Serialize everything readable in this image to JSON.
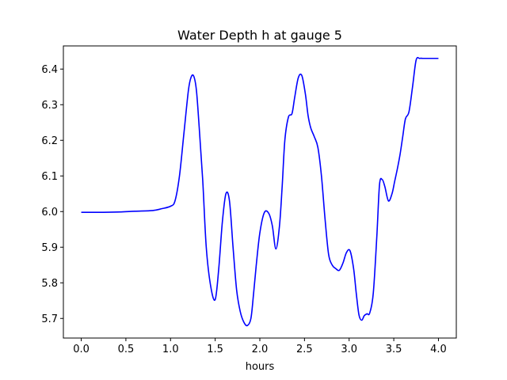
{
  "chart_data": {
    "type": "line",
    "title": "Water Depth h at gauge 5",
    "xlabel": "hours",
    "ylabel": "",
    "xlim": [
      -0.2,
      4.2
    ],
    "ylim": [
      5.645,
      6.465
    ],
    "xticks": [
      0.0,
      0.5,
      1.0,
      1.5,
      2.0,
      2.5,
      3.0,
      3.5,
      4.0
    ],
    "xtick_labels": [
      "0.0",
      "0.5",
      "1.0",
      "1.5",
      "2.0",
      "2.5",
      "3.0",
      "3.5",
      "4.0"
    ],
    "yticks": [
      5.7,
      5.8,
      5.9,
      6.0,
      6.1,
      6.2,
      6.3,
      6.4
    ],
    "ytick_labels": [
      "5.7",
      "5.8",
      "5.9",
      "6.0",
      "6.1",
      "6.2",
      "6.3",
      "6.4"
    ],
    "grid": false,
    "legend": "none",
    "series": [
      {
        "color": "#0000ff",
        "x": [
          0.0,
          0.25,
          0.45,
          0.6,
          0.8,
          0.9,
          1.0,
          1.05,
          1.1,
          1.15,
          1.2,
          1.23,
          1.26,
          1.29,
          1.32,
          1.36,
          1.4,
          1.45,
          1.5,
          1.54,
          1.58,
          1.62,
          1.66,
          1.7,
          1.74,
          1.78,
          1.82,
          1.86,
          1.9,
          1.93,
          1.96,
          2.0,
          2.05,
          2.1,
          2.14,
          2.18,
          2.22,
          2.25,
          2.28,
          2.32,
          2.36,
          2.39,
          2.43,
          2.47,
          2.51,
          2.54,
          2.57,
          2.61,
          2.65,
          2.69,
          2.73,
          2.77,
          2.81,
          2.85,
          2.89,
          2.93,
          2.97,
          3.01,
          3.05,
          3.08,
          3.11,
          3.14,
          3.17,
          3.2,
          3.23,
          3.27,
          3.31,
          3.34,
          3.37,
          3.4,
          3.44,
          3.48,
          3.51,
          3.54,
          3.57,
          3.6,
          3.63,
          3.67,
          3.71,
          3.75,
          3.79,
          3.83,
          3.88,
          3.92,
          3.96,
          4.0
        ],
        "y": [
          5.998,
          5.998,
          5.999,
          6.001,
          6.003,
          6.008,
          6.015,
          6.03,
          6.1,
          6.22,
          6.34,
          6.377,
          6.38,
          6.34,
          6.24,
          6.09,
          5.9,
          5.79,
          5.753,
          5.84,
          5.97,
          6.05,
          6.03,
          5.9,
          5.78,
          5.72,
          5.69,
          5.68,
          5.7,
          5.77,
          5.85,
          5.94,
          5.997,
          5.995,
          5.96,
          5.895,
          5.96,
          6.07,
          6.2,
          6.265,
          6.275,
          6.32,
          6.375,
          6.382,
          6.33,
          6.27,
          6.235,
          6.21,
          6.18,
          6.1,
          5.98,
          5.88,
          5.85,
          5.84,
          5.835,
          5.855,
          5.885,
          5.89,
          5.84,
          5.77,
          5.71,
          5.695,
          5.708,
          5.713,
          5.715,
          5.77,
          5.93,
          6.075,
          6.09,
          6.07,
          6.03,
          6.05,
          6.085,
          6.12,
          6.16,
          6.21,
          6.26,
          6.28,
          6.35,
          6.425,
          6.43,
          6.43,
          6.43,
          6.43,
          6.43,
          6.43
        ]
      }
    ]
  }
}
